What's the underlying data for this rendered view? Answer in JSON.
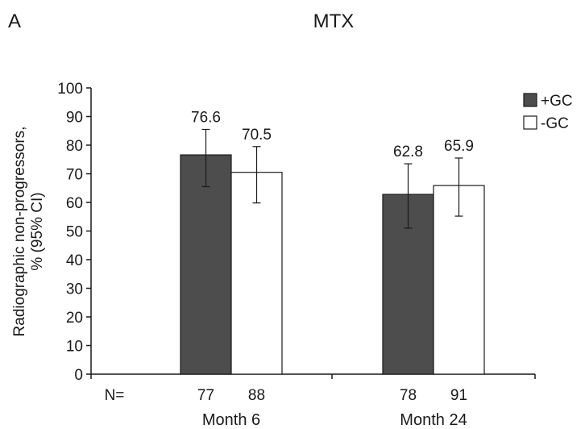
{
  "panel_label": "A",
  "chart_data": {
    "type": "bar",
    "title": "MTX",
    "ylabel_lines": [
      "Radiographic non-progressors,",
      "% (95% CI)"
    ],
    "ylim": [
      0,
      100
    ],
    "yticks": [
      0,
      10,
      20,
      30,
      40,
      50,
      60,
      70,
      80,
      90,
      100
    ],
    "grid": false,
    "legend_position": "top-right",
    "categories": [
      "Month 6",
      "Month 24"
    ],
    "n_label": "N=",
    "series": [
      {
        "name": "+GC",
        "color": "#4d4d4d",
        "fill": "#4d4d4d",
        "values": [
          76.6,
          62.8
        ],
        "ci_low": [
          65.5,
          51.0
        ],
        "ci_high": [
          85.5,
          73.5
        ],
        "n": [
          "77",
          "78"
        ]
      },
      {
        "name": "-GC",
        "color": "#ffffff",
        "fill": "#ffffff",
        "values": [
          70.5,
          65.9
        ],
        "ci_low": [
          59.8,
          55.2
        ],
        "ci_high": [
          79.5,
          75.5
        ],
        "n": [
          "88",
          "91"
        ]
      }
    ]
  }
}
